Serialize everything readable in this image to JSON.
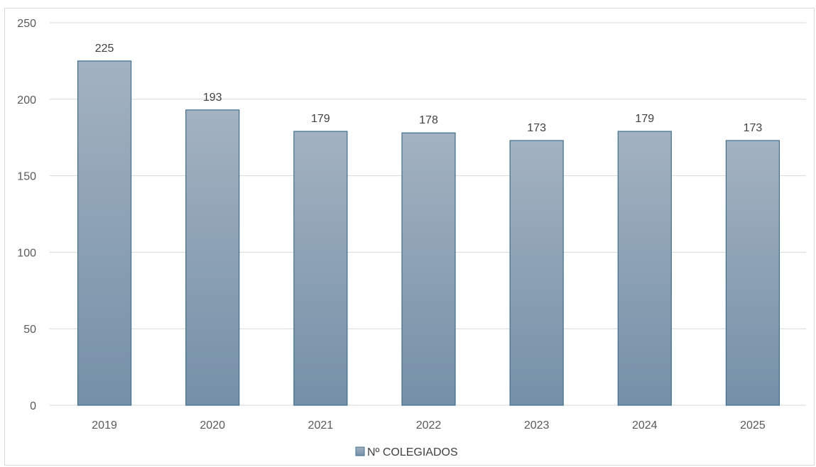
{
  "chart_data": {
    "type": "bar",
    "categories": [
      "2019",
      "2020",
      "2021",
      "2022",
      "2023",
      "2024",
      "2025"
    ],
    "series": [
      {
        "name": "Nº COLEGIADOS",
        "values": [
          225,
          193,
          179,
          178,
          173,
          179,
          173
        ]
      }
    ],
    "title": "",
    "xlabel": "",
    "ylabel": "",
    "ylim": [
      0,
      250
    ],
    "yticks": [
      "0",
      "50",
      "100",
      "150",
      "200",
      "250"
    ],
    "grid": "horizontal",
    "legend_position": "bottom",
    "data_labels": true,
    "colors": {
      "bar_top": "#a3b2c0",
      "bar_bottom": "#7590a8",
      "bar_border": "#3f6f8e",
      "gridline": "#d9d9d9"
    }
  }
}
